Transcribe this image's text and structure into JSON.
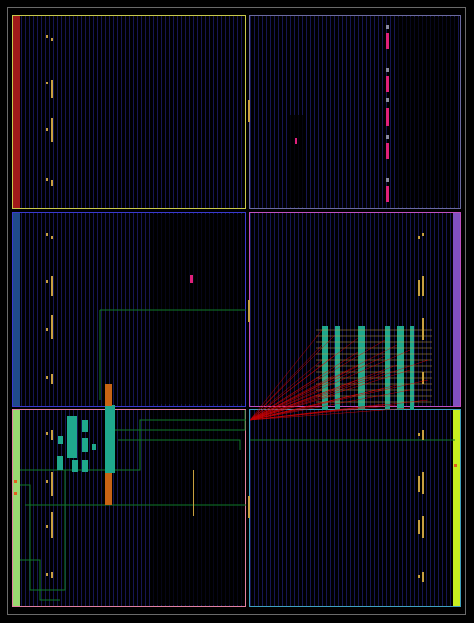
{
  "layout_view": {
    "colors": {
      "background": "#000000",
      "die_border": "#6a6a6a",
      "grid_lines": "#28288f",
      "net_ratsnest": "#e00000",
      "cell_teal": "#1fa88c",
      "cell_orange": "#c86414",
      "cell_magenta": "#e0207a",
      "io_pad": "#c8a040",
      "route_green": "#0f7a2a"
    },
    "regions": [
      {
        "name": "top-left",
        "border": "#c8c84a",
        "stripe": "#a01a1a"
      },
      {
        "name": "top-right",
        "border": "#6a6aa0",
        "stripe": ""
      },
      {
        "name": "mid-left",
        "border": "#3a3ad0",
        "stripe": "#1f4a8a"
      },
      {
        "name": "mid-right",
        "border": "#c050c0",
        "stripe": "#8050c0"
      },
      {
        "name": "bottom-left",
        "border": "#e080a0",
        "stripe": "#9ad870"
      },
      {
        "name": "bottom-right",
        "border": "#40a0c0",
        "stripe": "#c8f020"
      }
    ]
  }
}
